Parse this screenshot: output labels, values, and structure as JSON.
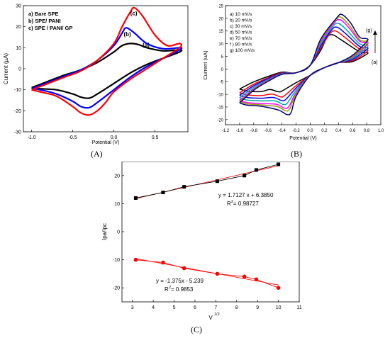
{
  "panels": {
    "A": {
      "caption": "(A)"
    },
    "B": {
      "caption": "(B)"
    },
    "C": {
      "caption": "(C)"
    }
  },
  "chart_data": [
    {
      "panel": "A",
      "type": "line",
      "title": "",
      "xlabel": "Potential (V)",
      "ylabel": "Current (µA)",
      "xlim": [
        -1.1,
        0.9
      ],
      "ylim": [
        -30,
        30
      ],
      "xticks": [
        -1.0,
        -0.5,
        0.0,
        0.5
      ],
      "xtick_labels": [
        "-1.0",
        "-0.5",
        "0.0",
        "0.5"
      ],
      "yticks": [
        -30,
        -20,
        -10,
        0,
        10,
        20,
        30
      ],
      "ytick_labels": [
        "-30",
        "-20",
        "-10",
        "0",
        "10",
        "20",
        "30"
      ],
      "grid": false,
      "legend_lines": [
        "a) Bare SPE",
        "b) SPE/ PANI",
        "c) SPE / PANI/ GP"
      ],
      "series": [
        {
          "name": "a) Bare SPE",
          "label": "(a)",
          "color": "#000000",
          "forward_x": [
            -1.0,
            -0.8,
            -0.6,
            -0.4,
            -0.2,
            0.0,
            0.1,
            0.2,
            0.3,
            0.4,
            0.6,
            0.8
          ],
          "forward_y": [
            -9,
            -6,
            -3,
            -0.5,
            3,
            8,
            11,
            12,
            11.5,
            10,
            8.5,
            9
          ],
          "reverse_x": [
            0.8,
            0.6,
            0.4,
            0.2,
            0.0,
            -0.2,
            -0.3,
            -0.4,
            -0.5,
            -0.7,
            -0.9,
            -1.0
          ],
          "reverse_y": [
            8,
            5,
            2,
            -2,
            -7,
            -12,
            -14,
            -13.5,
            -12,
            -10,
            -9.5,
            -9
          ]
        },
        {
          "name": "b) SPE/ PANI",
          "label": "(b)",
          "color": "#0000ff",
          "forward_x": [
            -1.0,
            -0.8,
            -0.6,
            -0.4,
            -0.2,
            0.0,
            0.1,
            0.15,
            0.25,
            0.4,
            0.6,
            0.8
          ],
          "forward_y": [
            -9.5,
            -6.5,
            -3.5,
            -0.5,
            4,
            11,
            17,
            19.5,
            17,
            12,
            9.5,
            10
          ],
          "reverse_x": [
            0.8,
            0.6,
            0.4,
            0.2,
            0.0,
            -0.2,
            -0.3,
            -0.4,
            -0.5,
            -0.7,
            -0.9,
            -1.0
          ],
          "reverse_y": [
            9,
            5,
            1,
            -4,
            -10,
            -16,
            -18.5,
            -18,
            -15.5,
            -12,
            -10,
            -9.5
          ]
        },
        {
          "name": "c) SPE / PANI/ GP",
          "label": "(c)",
          "color": "#ff0000",
          "forward_x": [
            -1.0,
            -0.8,
            -0.6,
            -0.4,
            -0.2,
            0.0,
            0.1,
            0.2,
            0.25,
            0.35,
            0.5,
            0.65,
            0.8
          ],
          "forward_y": [
            -10,
            -7,
            -4,
            -1,
            4,
            12,
            20,
            27,
            29,
            25,
            16,
            11,
            12
          ],
          "reverse_x": [
            0.8,
            0.6,
            0.4,
            0.2,
            0.0,
            -0.1,
            -0.2,
            -0.3,
            -0.4,
            -0.5,
            -0.7,
            -0.9,
            -1.0
          ],
          "reverse_y": [
            10,
            5,
            0,
            -5,
            -11,
            -16,
            -20,
            -22,
            -21,
            -18,
            -13,
            -11,
            -10
          ]
        }
      ]
    },
    {
      "panel": "B",
      "type": "line",
      "title": "",
      "xlabel": "Potential (V)",
      "ylabel": "Current (uA)",
      "xlim": [
        -1.2,
        1.0
      ],
      "ylim": [
        -22,
        25
      ],
      "xticks": [
        -1.2,
        -1.0,
        -0.8,
        -0.6,
        -0.4,
        -0.2,
        0.0,
        0.2,
        0.4,
        0.6,
        0.8,
        1.0
      ],
      "xtick_labels": [
        "-1.2",
        "-1.0",
        "-0.8",
        "-0.6",
        "-0.4",
        "-0.2",
        "0.0",
        "0.2",
        "0.4",
        "0.6",
        "0.8",
        "1.0"
      ],
      "yticks": [
        -20,
        -15,
        -10,
        -5,
        0,
        5,
        10,
        15,
        20,
        25
      ],
      "ytick_labels": [
        "-20",
        "-15",
        "-10",
        "-5",
        "0",
        "5",
        "10",
        "15",
        "20",
        "25"
      ],
      "grid": false,
      "legend_lines": [
        "a) 10 mV/s",
        "b) 20 mV/s",
        "c) 30 mV/s",
        "d) 50 mV/s",
        "e) 70 mV/s",
        "f ) 80 mV/s",
        "g) 100 mV/s"
      ],
      "curve_labels": [
        "(g)",
        "(a)"
      ],
      "series": [
        {
          "name": "a) 10 mV/s",
          "color": "#000000",
          "ipa": 13.5,
          "ipc": -9.0,
          "epa": 0.32,
          "epc": -0.45,
          "end_ox": 6.5,
          "end_red": -8.5
        },
        {
          "name": "b) 20 mV/s",
          "color": "#ff0000",
          "ipa": 15.0,
          "ipc": -11.0,
          "epa": 0.36,
          "epc": -0.42,
          "end_ox": 7.5,
          "end_red": -10.0
        },
        {
          "name": "c) 30 mV/s",
          "color": "#0000ff",
          "ipa": 16.5,
          "ipc": -12.5,
          "epa": 0.38,
          "epc": -0.4,
          "end_ox": 8.5,
          "end_red": -11.0
        },
        {
          "name": "d) 50 mV/s",
          "color": "#00aaaa",
          "ipa": 18.0,
          "ipc": -14.0,
          "epa": 0.4,
          "epc": -0.38,
          "end_ox": 9.5,
          "end_red": -12.0
        },
        {
          "name": "e) 70 mV/s",
          "color": "#ff00ff",
          "ipa": 19.5,
          "ipc": -15.5,
          "epa": 0.42,
          "epc": -0.36,
          "end_ox": 10.5,
          "end_red": -13.0
        },
        {
          "name": "f ) 80 mV/s",
          "color": "#999900",
          "ipa": 20.5,
          "ipc": -16.5,
          "epa": 0.43,
          "epc": -0.35,
          "end_ox": 11.0,
          "end_red": -13.5
        },
        {
          "name": "g) 100 mV/s",
          "color": "#000080",
          "ipa": 21.5,
          "ipc": -18.0,
          "epa": 0.45,
          "epc": -0.33,
          "end_ox": 12.0,
          "end_red": -14.0
        }
      ]
    },
    {
      "panel": "C",
      "type": "scatter",
      "title": "",
      "xlabel": "V",
      "xlabel_sup": "1/2",
      "ylabel": "Ipa/Ipc",
      "xlim": [
        2.5,
        11
      ],
      "ylim": [
        -25,
        25
      ],
      "xticks": [
        3,
        4,
        5,
        6,
        7,
        8,
        9,
        10,
        11
      ],
      "xtick_labels": [
        "3",
        "4",
        "5",
        "6",
        "7",
        "8",
        "9",
        "10",
        "11"
      ],
      "yticks": [
        -20,
        -10,
        0,
        10,
        20
      ],
      "ytick_labels": [
        "-20",
        "-10",
        "0",
        "10",
        "20"
      ],
      "grid": false,
      "series": [
        {
          "name": "Ipa",
          "color": "#000000",
          "marker": "square",
          "x": [
            3.16,
            4.47,
            5.48,
            7.07,
            8.37,
            8.94,
            10.0
          ],
          "y": [
            12,
            14,
            16,
            18,
            20,
            22,
            24
          ],
          "fit": {
            "slope": 1.7127,
            "intercept": 6.385
          },
          "equation": "y = 1.7127 x + 6.3850",
          "r2_label": "R",
          "r2_value": "2",
          "r2_text": " = 0.98727"
        },
        {
          "name": "Ipc",
          "color": "#ff0000",
          "marker": "circle",
          "x": [
            3.16,
            4.47,
            5.48,
            7.07,
            8.37,
            8.94,
            10.0
          ],
          "y": [
            -10,
            -11,
            -13,
            -15,
            -16,
            -17,
            -20
          ],
          "fit": {
            "slope": -1.375,
            "intercept": -5.239
          },
          "equation": "y = -1.375x - 5.239",
          "r2_label": "R",
          "r2_value": "2",
          "r2_text": " = 0.9853"
        }
      ]
    }
  ]
}
